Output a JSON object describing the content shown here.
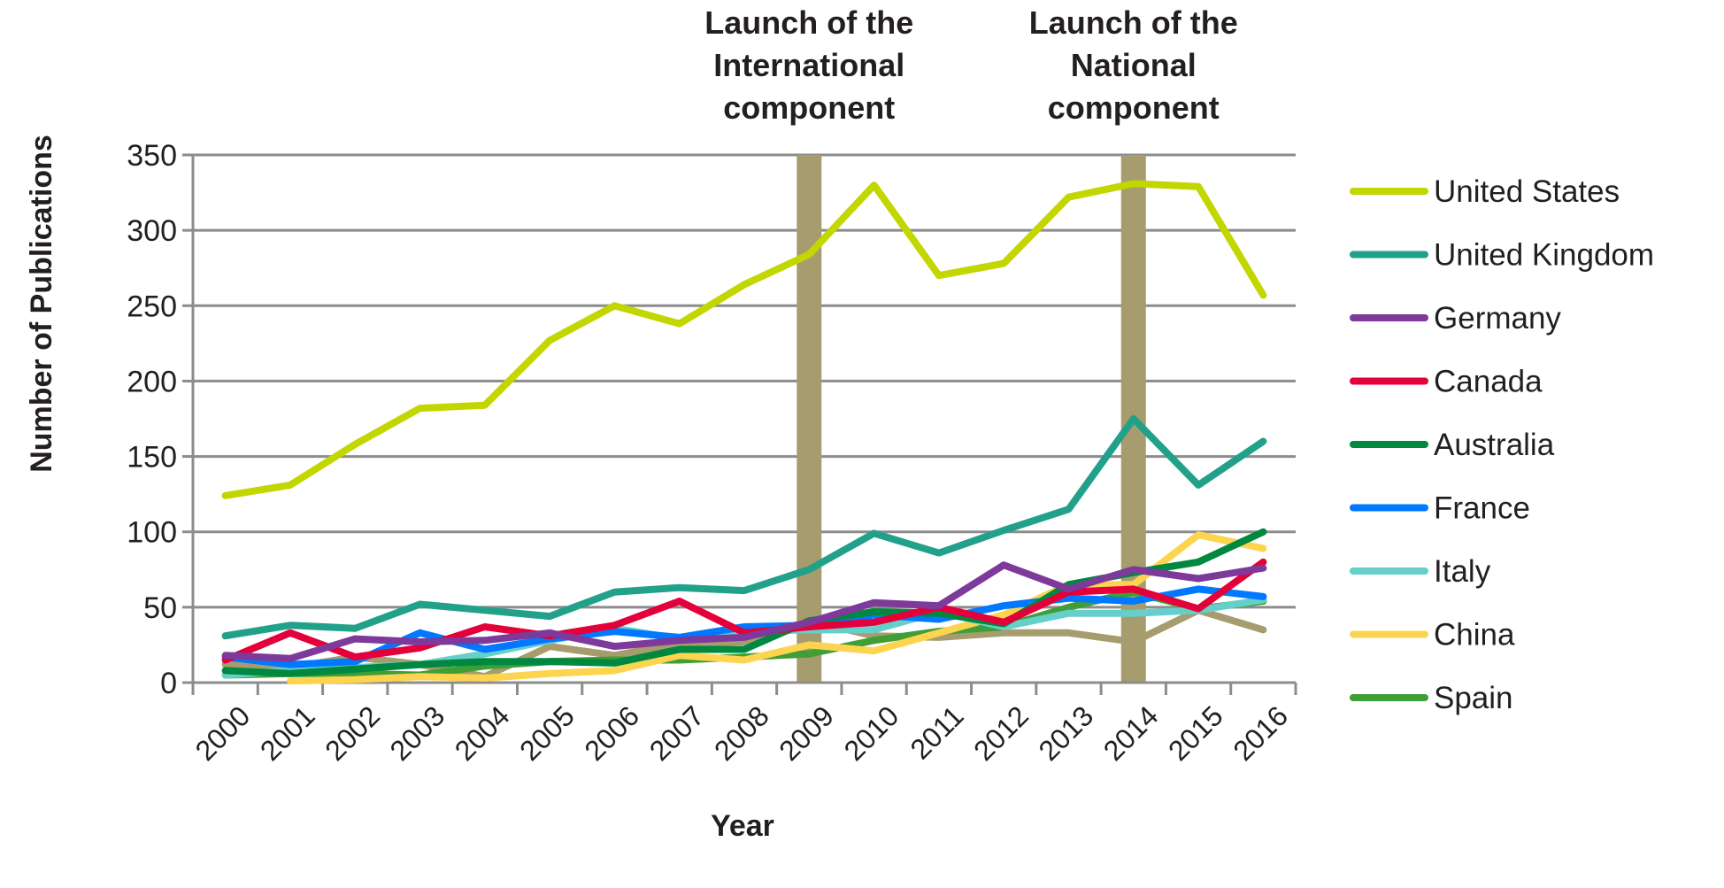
{
  "chart_data": {
    "type": "line",
    "title": "",
    "xlabel": "Year",
    "ylabel": "Number of Publications",
    "ylim": [
      0,
      350
    ],
    "yticks": [
      0,
      50,
      100,
      150,
      200,
      250,
      300,
      350
    ],
    "grid": "horizontal",
    "legend_position": "right",
    "categories": [
      "2000",
      "2001",
      "2002",
      "2003",
      "2004",
      "2005",
      "2006",
      "2007",
      "2008",
      "2009",
      "2010",
      "2011",
      "2012",
      "2013",
      "2014",
      "2015",
      "2016"
    ],
    "annotations": [
      {
        "year": "2009",
        "lines": [
          "Launch of the",
          "International",
          "component"
        ],
        "color": "#a69c6e"
      },
      {
        "year": "2014",
        "lines": [
          "Launch of the",
          "National",
          "component"
        ],
        "color": "#a69c6e"
      }
    ],
    "series": [
      {
        "name": "United States",
        "color": "#c2d600",
        "values": [
          124,
          131,
          158,
          182,
          184,
          227,
          250,
          238,
          264,
          284,
          330,
          270,
          278,
          322,
          331,
          329,
          257
        ]
      },
      {
        "name": "United Kingdom",
        "color": "#21a08a",
        "values": [
          31,
          38,
          36,
          52,
          48,
          44,
          60,
          63,
          61,
          75,
          99,
          86,
          101,
          115,
          175,
          131,
          160
        ]
      },
      {
        "name": "Germany",
        "color": "#7e3a9b",
        "values": [
          18,
          16,
          29,
          27,
          28,
          33,
          24,
          28,
          30,
          40,
          53,
          51,
          78,
          62,
          75,
          69,
          76
        ]
      },
      {
        "name": "Canada",
        "color": "#e4003a",
        "values": [
          15,
          33,
          17,
          23,
          37,
          31,
          38,
          54,
          33,
          37,
          40,
          50,
          40,
          60,
          62,
          49,
          80
        ]
      },
      {
        "name": "Australia",
        "color": "#008840",
        "values": [
          8,
          6,
          9,
          12,
          14,
          14,
          13,
          22,
          22,
          41,
          47,
          46,
          39,
          65,
          73,
          80,
          100
        ]
      },
      {
        "name": "France",
        "color": "#0078ff",
        "values": [
          17,
          12,
          14,
          33,
          22,
          29,
          34,
          30,
          37,
          38,
          45,
          42,
          51,
          56,
          54,
          62,
          57
        ]
      },
      {
        "name": "Italy",
        "color": "#66cfc9",
        "values": [
          5,
          8,
          10,
          12,
          19,
          28,
          36,
          29,
          34,
          35,
          35,
          47,
          37,
          46,
          46,
          48,
          55
        ]
      },
      {
        "name": "China",
        "color": "#fdd44f",
        "values": [
          null,
          1,
          2,
          4,
          3,
          6,
          8,
          18,
          15,
          25,
          21,
          33,
          45,
          65,
          65,
          98,
          89
        ]
      },
      {
        "name": "Spain",
        "color": "#3f9e35",
        "values": [
          5,
          6,
          6,
          5,
          11,
          14,
          15,
          15,
          17,
          19,
          28,
          34,
          37,
          50,
          60,
          49,
          54
        ]
      },
      {
        "name": null,
        "color": "#a69c6e",
        "values": [
          12,
          10,
          17,
          12,
          4,
          24,
          18,
          26,
          27,
          41,
          31,
          30,
          33,
          33,
          27,
          48,
          35
        ]
      }
    ]
  }
}
